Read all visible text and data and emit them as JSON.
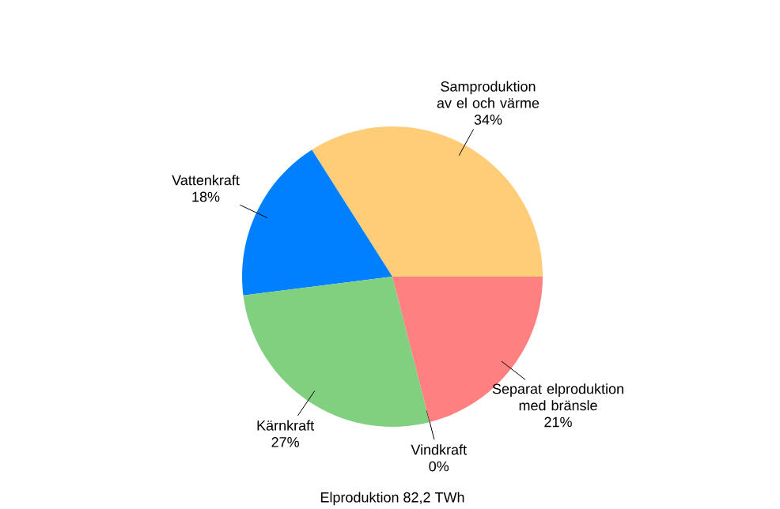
{
  "chart_data": {
    "type": "pie",
    "categories": [
      "Samproduktion av el och värme",
      "Vattenkraft",
      "Kärnkraft",
      "Vindkraft",
      "Separat elproduktion med bränsle"
    ],
    "values": [
      34,
      18,
      27,
      0,
      21
    ],
    "value_labels": [
      "34%",
      "18%",
      "27%",
      "0%",
      "21%"
    ],
    "colors": [
      "#ffcc77",
      "#0080ff",
      "#80d080",
      "#a0a0a0",
      "#ff8080"
    ],
    "annotations": [
      "Elproduktion 82,2 TWh"
    ]
  }
}
